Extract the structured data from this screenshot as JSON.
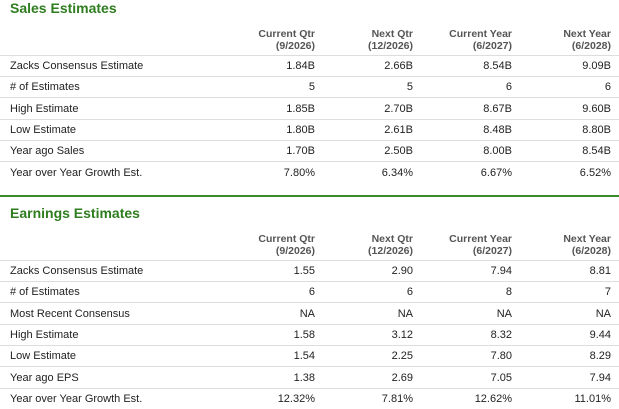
{
  "sections": [
    {
      "title": "Sales Estimates",
      "columns": [
        {
          "name": "Current Qtr",
          "period": "(9/2026)"
        },
        {
          "name": "Next Qtr",
          "period": "(12/2026)"
        },
        {
          "name": "Current Year",
          "period": "(6/2027)"
        },
        {
          "name": "Next Year",
          "period": "(6/2028)"
        }
      ],
      "rows": [
        [
          "Zacks Consensus Estimate",
          "1.84B",
          "2.66B",
          "8.54B",
          "9.09B"
        ],
        [
          "# of Estimates",
          "5",
          "5",
          "6",
          "6"
        ],
        [
          "High Estimate",
          "1.85B",
          "2.70B",
          "8.67B",
          "9.60B"
        ],
        [
          "Low Estimate",
          "1.80B",
          "2.61B",
          "8.48B",
          "8.80B"
        ],
        [
          "Year ago Sales",
          "1.70B",
          "2.50B",
          "8.00B",
          "8.54B"
        ],
        [
          "Year over Year Growth Est.",
          "7.80%",
          "6.34%",
          "6.67%",
          "6.52%"
        ]
      ]
    },
    {
      "title": "Earnings Estimates",
      "columns": [
        {
          "name": "Current Qtr",
          "period": "(9/2026)"
        },
        {
          "name": "Next Qtr",
          "period": "(12/2026)"
        },
        {
          "name": "Current Year",
          "period": "(6/2027)"
        },
        {
          "name": "Next Year",
          "period": "(6/2028)"
        }
      ],
      "rows": [
        [
          "Zacks Consensus Estimate",
          "1.55",
          "2.90",
          "7.94",
          "8.81"
        ],
        [
          "# of Estimates",
          "6",
          "6",
          "8",
          "7"
        ],
        [
          "Most Recent Consensus",
          "NA",
          "NA",
          "NA",
          "NA"
        ],
        [
          "High Estimate",
          "1.58",
          "3.12",
          "8.32",
          "9.44"
        ],
        [
          "Low Estimate",
          "1.54",
          "2.25",
          "7.80",
          "8.29"
        ],
        [
          "Year ago EPS",
          "1.38",
          "2.69",
          "7.05",
          "7.94"
        ],
        [
          "Year over Year Growth Est.",
          "12.32%",
          "7.81%",
          "12.62%",
          "11.01%"
        ]
      ]
    }
  ]
}
